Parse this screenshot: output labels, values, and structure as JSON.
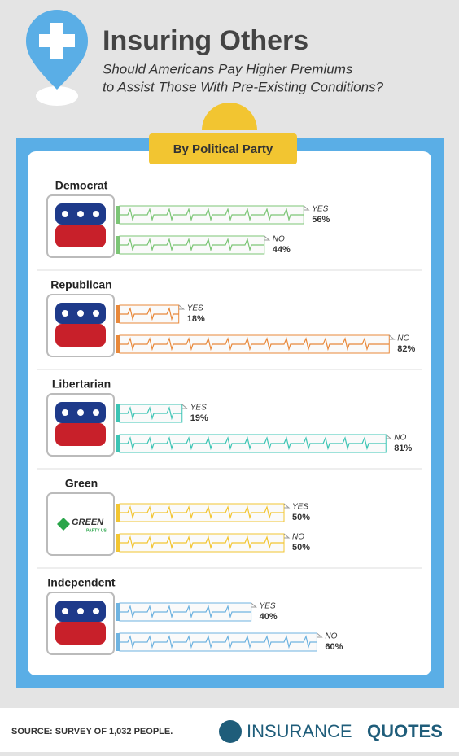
{
  "chart_data": {
    "type": "bar",
    "title": "Insuring Others",
    "subtitle": [
      "Should Americans Pay Higher Premiums",
      "to Assist Those With Pre-Existing Conditions?"
    ],
    "section_title": "By Political Party",
    "categories": [
      "YES",
      "NO"
    ],
    "xlim": [
      0,
      100
    ],
    "groups": [
      {
        "name": "Democrat",
        "color": "#7cc576",
        "values": [
          56,
          44
        ],
        "value_labels": [
          "56%",
          "44%"
        ]
      },
      {
        "name": "Republican",
        "color": "#e8883a",
        "values": [
          18,
          82
        ],
        "value_labels": [
          "18%",
          "82%"
        ]
      },
      {
        "name": "Libertarian",
        "color": "#3cc4b4",
        "values": [
          19,
          81
        ],
        "value_labels": [
          "19%",
          "81%"
        ]
      },
      {
        "name": "Green",
        "color": "#f2c531",
        "values": [
          50,
          50
        ],
        "value_labels": [
          "50%",
          "50%"
        ],
        "logo_text": [
          "GREEN",
          "PARTY US"
        ]
      },
      {
        "name": "Independent",
        "color": "#6fb3e0",
        "values": [
          40,
          60
        ],
        "value_labels": [
          "40%",
          "60%"
        ]
      }
    ],
    "source": "SOURCE: SURVEY OF 1,032 PEOPLE.",
    "brand": [
      "INSURANCE",
      "QUOTES"
    ]
  }
}
